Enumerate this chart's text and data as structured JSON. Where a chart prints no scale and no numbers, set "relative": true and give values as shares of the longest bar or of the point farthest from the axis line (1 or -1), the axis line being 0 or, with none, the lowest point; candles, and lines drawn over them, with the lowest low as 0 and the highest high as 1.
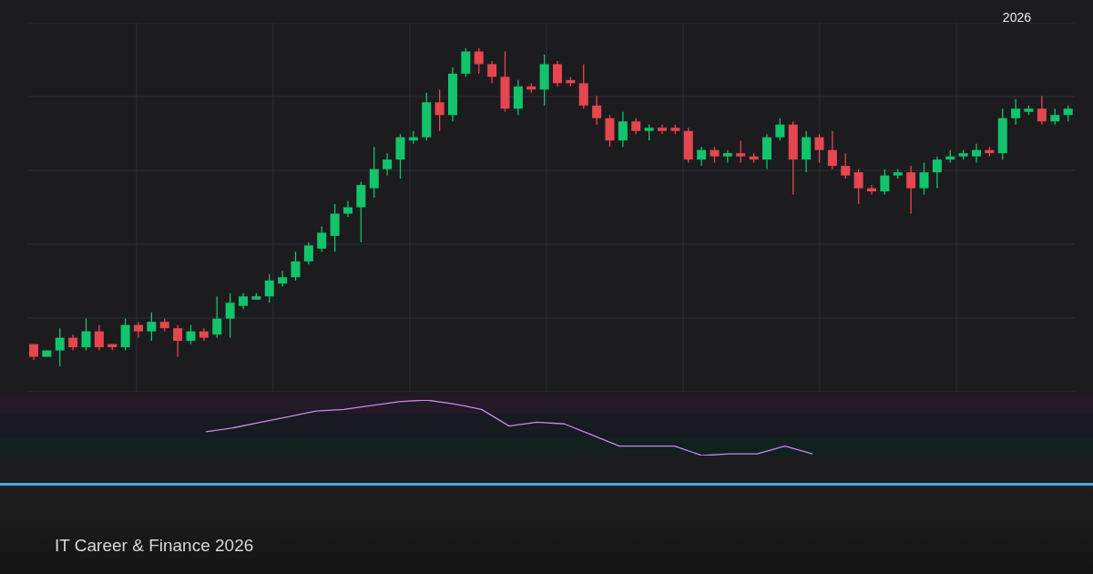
{
  "chart_data": [
    {
      "type": "candlestick",
      "relative": true,
      "grid": true,
      "categories": [
        null,
        null,
        null,
        null,
        null,
        null,
        null,
        null,
        null,
        null,
        null,
        null,
        null,
        null,
        null,
        null,
        null,
        null,
        null,
        null,
        null,
        null,
        null,
        null,
        null,
        null,
        null,
        null,
        null,
        null,
        null,
        null,
        null,
        null,
        null,
        null,
        null,
        null,
        null,
        null,
        null,
        null,
        null,
        null,
        null,
        null,
        null,
        null,
        null,
        null,
        null,
        null,
        null,
        null,
        null,
        null,
        null,
        null,
        null,
        null,
        null,
        null,
        null,
        null,
        null,
        null,
        null,
        null,
        null,
        null,
        null,
        null,
        null,
        null,
        null,
        null,
        null,
        null,
        null,
        null
      ],
      "ohlc": [
        [
          0.07,
          0.07,
          0.02,
          0.03
        ],
        [
          0.03,
          0.05,
          0.03,
          0.05
        ],
        [
          0.05,
          0.12,
          0,
          0.09
        ],
        [
          0.09,
          0.1,
          0.05,
          0.06
        ],
        [
          0.06,
          0.15,
          0.05,
          0.11
        ],
        [
          0.11,
          0.13,
          0.05,
          0.06
        ],
        [
          0.07,
          0.07,
          0.05,
          0.06
        ],
        [
          0.06,
          0.15,
          0.05,
          0.13
        ],
        [
          0.13,
          0.14,
          0.09,
          0.11
        ],
        [
          0.11,
          0.17,
          0.08,
          0.14
        ],
        [
          0.14,
          0.15,
          0.11,
          0.12
        ],
        [
          0.12,
          0.13,
          0.03,
          0.08
        ],
        [
          0.08,
          0.13,
          0.07,
          0.11
        ],
        [
          0.11,
          0.12,
          0.08,
          0.09
        ],
        [
          0.1,
          0.22,
          0.09,
          0.15
        ],
        [
          0.15,
          0.23,
          0.09,
          0.2
        ],
        [
          0.19,
          0.23,
          0.18,
          0.22
        ],
        [
          0.21,
          0.23,
          0.21,
          0.22
        ],
        [
          0.22,
          0.29,
          0.2,
          0.27
        ],
        [
          0.26,
          0.3,
          0.25,
          0.28
        ],
        [
          0.28,
          0.36,
          0.27,
          0.33
        ],
        [
          0.33,
          0.39,
          0.32,
          0.38
        ],
        [
          0.37,
          0.44,
          0.36,
          0.42
        ],
        [
          0.41,
          0.51,
          0.36,
          0.48
        ],
        [
          0.48,
          0.52,
          0.47,
          0.5
        ],
        [
          0.5,
          0.58,
          0.39,
          0.57
        ],
        [
          0.56,
          0.69,
          0.53,
          0.62
        ],
        [
          0.62,
          0.67,
          0.6,
          0.65
        ],
        [
          0.65,
          0.73,
          0.59,
          0.72
        ],
        [
          0.71,
          0.74,
          0.7,
          0.72
        ],
        [
          0.72,
          0.86,
          0.71,
          0.83
        ],
        [
          0.83,
          0.87,
          0.74,
          0.79
        ],
        [
          0.79,
          0.94,
          0.77,
          0.92
        ],
        [
          0.92,
          1,
          0.91,
          0.99
        ],
        [
          0.99,
          1,
          0.92,
          0.95
        ],
        [
          0.95,
          0.96,
          0.89,
          0.91
        ],
        [
          0.91,
          0.99,
          0.8,
          0.81
        ],
        [
          0.81,
          0.9,
          0.79,
          0.88
        ],
        [
          0.88,
          0.89,
          0.86,
          0.87
        ],
        [
          0.87,
          0.98,
          0.82,
          0.95
        ],
        [
          0.95,
          0.96,
          0.88,
          0.89
        ],
        [
          0.9,
          0.91,
          0.88,
          0.89
        ],
        [
          0.89,
          0.95,
          0.81,
          0.82
        ],
        [
          0.82,
          0.85,
          0.76,
          0.78
        ],
        [
          0.78,
          0.79,
          0.69,
          0.71
        ],
        [
          0.71,
          0.8,
          0.69,
          0.77
        ],
        [
          0.77,
          0.78,
          0.73,
          0.74
        ],
        [
          0.74,
          0.76,
          0.71,
          0.75
        ],
        [
          0.75,
          0.76,
          0.73,
          0.74
        ],
        [
          0.75,
          0.76,
          0.73,
          0.74
        ],
        [
          0.74,
          0.75,
          0.64,
          0.65
        ],
        [
          0.65,
          0.69,
          0.63,
          0.68
        ],
        [
          0.68,
          0.69,
          0.64,
          0.66
        ],
        [
          0.66,
          0.68,
          0.64,
          0.67
        ],
        [
          0.67,
          0.71,
          0.64,
          0.66
        ],
        [
          0.66,
          0.67,
          0.64,
          0.65
        ],
        [
          0.65,
          0.73,
          0.62,
          0.72
        ],
        [
          0.72,
          0.78,
          0.71,
          0.76
        ],
        [
          0.76,
          0.77,
          0.54,
          0.65
        ],
        [
          0.65,
          0.74,
          0.61,
          0.72
        ],
        [
          0.72,
          0.73,
          0.64,
          0.68
        ],
        [
          0.68,
          0.74,
          0.62,
          0.63
        ],
        [
          0.63,
          0.67,
          0.59,
          0.6
        ],
        [
          0.61,
          0.62,
          0.51,
          0.56
        ],
        [
          0.56,
          0.57,
          0.54,
          0.55
        ],
        [
          0.55,
          0.62,
          0.54,
          0.6
        ],
        [
          0.6,
          0.62,
          0.59,
          0.61
        ],
        [
          0.61,
          0.63,
          0.48,
          0.56
        ],
        [
          0.56,
          0.64,
          0.54,
          0.61
        ],
        [
          0.61,
          0.66,
          0.56,
          0.65
        ],
        [
          0.65,
          0.68,
          0.64,
          0.66
        ],
        [
          0.66,
          0.68,
          0.65,
          0.67
        ],
        [
          0.66,
          0.7,
          0.64,
          0.68
        ],
        [
          0.68,
          0.69,
          0.66,
          0.67
        ],
        [
          0.67,
          0.81,
          0.65,
          0.78
        ],
        [
          0.78,
          0.84,
          0.76,
          0.81
        ],
        [
          0.8,
          0.82,
          0.79,
          0.81
        ],
        [
          0.81,
          0.85,
          0.76,
          0.77
        ],
        [
          0.77,
          0.81,
          0.76,
          0.79
        ],
        [
          0.79,
          0.82,
          0.77,
          0.81
        ]
      ],
      "colors": [
        "#e5464f",
        "#12c46b",
        "#12c46b",
        "#e5464f",
        "#12c46b",
        "#e5464f",
        "#e5464f",
        "#12c46b",
        "#e5464f",
        "#12c46b",
        "#e5464f",
        "#e5464f",
        "#12c46b",
        "#e5464f",
        "#12c46b",
        "#12c46b",
        "#12c46b",
        "#12c46b",
        "#12c46b",
        "#12c46b",
        "#12c46b",
        "#12c46b",
        "#12c46b",
        "#12c46b",
        "#12c46b",
        "#12c46b",
        "#12c46b",
        "#12c46b",
        "#12c46b",
        "#12c46b",
        "#12c46b",
        "#e5464f",
        "#12c46b",
        "#12c46b",
        "#e5464f",
        "#e5464f",
        "#e5464f",
        "#12c46b",
        "#e5464f",
        "#12c46b",
        "#e5464f",
        "#e5464f",
        "#e5464f",
        "#e5464f",
        "#e5464f",
        "#12c46b",
        "#e5464f",
        "#12c46b",
        "#e5464f",
        "#e5464f",
        "#e5464f",
        "#12c46b",
        "#e5464f",
        "#12c46b",
        "#e5464f",
        "#e5464f",
        "#12c46b",
        "#12c46b",
        "#e5464f",
        "#12c46b",
        "#e5464f",
        "#e5464f",
        "#e5464f",
        "#e5464f",
        "#e5464f",
        "#12c46b",
        "#12c46b",
        "#e5464f",
        "#12c46b",
        "#12c46b",
        "#12c46b",
        "#12c46b",
        "#12c46b",
        "#e5464f",
        "#12c46b",
        "#12c46b",
        "#12c46b",
        "#e5464f",
        "#12c46b",
        "#12c46b"
      ],
      "annotations": [
        "2026",
        "IT Career & Finance 2026"
      ]
    },
    {
      "type": "line",
      "relative": true,
      "color": "#c78ae6",
      "categories": [
        null,
        null,
        null,
        null,
        null,
        null,
        null,
        null,
        null,
        null,
        null,
        null,
        null,
        null,
        null,
        null,
        null,
        null,
        null,
        null,
        null,
        null,
        null
      ],
      "values": [
        0.43,
        0.5,
        0.6,
        0.7,
        0.8,
        0.83,
        0.9,
        0.97,
        1,
        0.93,
        0.83,
        0.53,
        0.6,
        0.57,
        0.37,
        0.17,
        0.17,
        0.17,
        0,
        0.03,
        0.03,
        0.17,
        0.03
      ]
    }
  ]
}
